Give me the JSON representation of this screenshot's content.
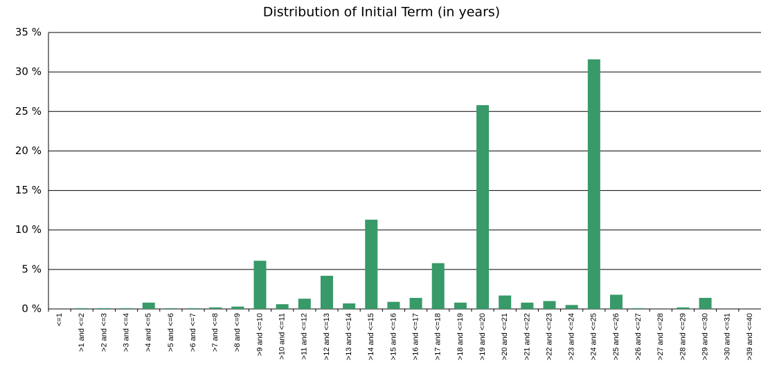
{
  "chart_data": {
    "type": "bar",
    "title": "Distribution of Initial Term (in years)",
    "categories": [
      "<=1",
      ">1 and <=2",
      ">2 and <=3",
      ">3 and <=4",
      ">4 and <=5",
      ">5 and <=6",
      ">6 and <=7",
      ">7 and <=8",
      ">8 and <=9",
      ">9 and <=10",
      ">10 and <=11",
      ">11 and <=12",
      ">12 and <=13",
      ">13 and <=14",
      ">14 and <=15",
      ">15 and <=16",
      ">16 and <=17",
      ">17 and <=18",
      ">18 and <=19",
      ">19 and <=20",
      ">20 and <=21",
      ">21 and <=22",
      ">22 and <=23",
      ">23 and <=24",
      ">24 and <=25",
      ">25 and <=26",
      ">26 and <=27",
      ">27 and <=28",
      ">28 and <=29",
      ">29 and <=30",
      ">30 and <=31",
      ">39 and <=40"
    ],
    "values": [
      0,
      0.1,
      0.1,
      0.1,
      0.8,
      0.1,
      0.1,
      0.2,
      0.3,
      6.1,
      0.6,
      1.3,
      4.2,
      0.7,
      11.3,
      0.9,
      1.4,
      5.8,
      0.8,
      25.8,
      1.7,
      0.8,
      1.0,
      0.5,
      31.6,
      1.8,
      0.1,
      0,
      0.2,
      1.4,
      0,
      0
    ],
    "color": "#379a68",
    "ylim": [
      0,
      35
    ],
    "yticks": [
      {
        "value": 0,
        "label": "0 %"
      },
      {
        "value": 5,
        "label": "5 %"
      },
      {
        "value": 10,
        "label": "10 %"
      },
      {
        "value": 15,
        "label": "15 %"
      },
      {
        "value": 20,
        "label": "20 %"
      },
      {
        "value": 25,
        "label": "25 %"
      },
      {
        "value": 30,
        "label": "30 %"
      },
      {
        "value": 35,
        "label": "35 %"
      }
    ],
    "grid": true
  }
}
